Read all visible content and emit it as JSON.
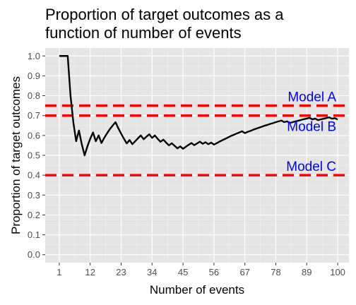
{
  "chart_data": {
    "type": "line",
    "title": "Proportion of target outcomes as a\nfunction of number of events",
    "xlabel": "Number of events",
    "ylabel": "Proportion of target outcomes",
    "xlim": [
      -4,
      104
    ],
    "ylim": [
      -0.04,
      1.04
    ],
    "x_ticks": [
      1,
      12,
      23,
      34,
      45,
      56,
      67,
      78,
      89,
      100
    ],
    "x_tick_labels": [
      "1",
      "12",
      "23",
      "34",
      "45",
      "56",
      "67",
      "78",
      "89",
      "100"
    ],
    "y_ticks": [
      0.0,
      0.1,
      0.2,
      0.3,
      0.4,
      0.5,
      0.6,
      0.7,
      0.8,
      0.9,
      1.0
    ],
    "y_tick_labels": [
      "0.0",
      "0.1",
      "0.2",
      "0.3",
      "0.4",
      "0.5",
      "0.6",
      "0.7",
      "0.8",
      "0.9",
      "1.0"
    ],
    "grid": true,
    "panel_background": "#e5e5e5",
    "series": [
      {
        "color": "#000000",
        "x": [
          1,
          2,
          3,
          4,
          5,
          6,
          7,
          8,
          9,
          10,
          11,
          12,
          13,
          14,
          15,
          16,
          17,
          18,
          19,
          20,
          21,
          22,
          23,
          24,
          25,
          26,
          27,
          28,
          29,
          30,
          31,
          32,
          33,
          34,
          35,
          36,
          37,
          38,
          39,
          40,
          41,
          42,
          43,
          44,
          45,
          46,
          47,
          48,
          49,
          50,
          51,
          52,
          53,
          54,
          55,
          56,
          57,
          58,
          59,
          60,
          61,
          62,
          63,
          64,
          65,
          66,
          67,
          68,
          69,
          70,
          71,
          72,
          73,
          74,
          75,
          76,
          77,
          78,
          79,
          80,
          81,
          82,
          83,
          84,
          85,
          86,
          87,
          88,
          89,
          90,
          91,
          92,
          93,
          94,
          95,
          96,
          97,
          98,
          99,
          100
        ],
        "y": [
          1.0,
          1.0,
          1.0,
          1.0,
          0.8,
          0.667,
          0.571,
          0.625,
          0.556,
          0.5,
          0.545,
          0.583,
          0.615,
          0.571,
          0.6,
          0.562,
          0.588,
          0.611,
          0.632,
          0.65,
          0.667,
          0.636,
          0.609,
          0.583,
          0.56,
          0.577,
          0.556,
          0.571,
          0.586,
          0.6,
          0.581,
          0.594,
          0.606,
          0.588,
          0.6,
          0.583,
          0.568,
          0.579,
          0.564,
          0.55,
          0.561,
          0.548,
          0.535,
          0.545,
          0.533,
          0.543,
          0.553,
          0.562,
          0.551,
          0.56,
          0.569,
          0.558,
          0.566,
          0.556,
          0.564,
          0.554,
          0.561,
          0.569,
          0.576,
          0.583,
          0.59,
          0.597,
          0.603,
          0.609,
          0.615,
          0.621,
          0.612,
          0.618,
          0.623,
          0.629,
          0.634,
          0.639,
          0.644,
          0.649,
          0.653,
          0.658,
          0.662,
          0.667,
          0.671,
          0.675,
          0.667,
          0.671,
          0.663,
          0.667,
          0.671,
          0.674,
          0.678,
          0.682,
          0.685,
          0.689,
          0.681,
          0.685,
          0.677,
          0.681,
          0.684,
          0.688,
          0.691,
          0.684,
          0.687,
          0.68
        ]
      }
    ],
    "reference_lines": [
      {
        "label": "Model A",
        "y": 0.75,
        "color": "#ff0000",
        "label_color": "#0000ff"
      },
      {
        "label": "Model B",
        "y": 0.7,
        "color": "#ff0000",
        "label_color": "#0000ff"
      },
      {
        "label": "Model C",
        "y": 0.4,
        "color": "#ff0000",
        "label_color": "#0000ff"
      }
    ]
  }
}
